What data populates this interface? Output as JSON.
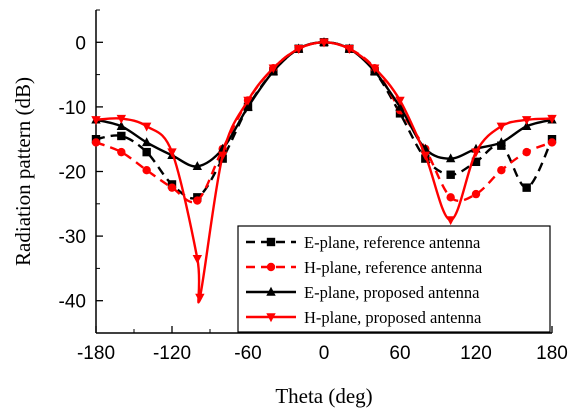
{
  "chart_data": {
    "type": "line",
    "title": "",
    "xlabel": "Theta (deg)",
    "ylabel": "Radiation pattern (dB)",
    "xlim": [
      -180,
      180
    ],
    "ylim": [
      -45,
      5
    ],
    "xticks": [
      -180,
      -120,
      -60,
      0,
      60,
      120,
      180
    ],
    "yticks": [
      0,
      -10,
      -20,
      -30,
      -40
    ],
    "grid": false,
    "legend_position": "bottom-right",
    "series": [
      {
        "name": "E-plane, reference antenna",
        "color": "#000000",
        "dash": "dashed",
        "marker": "square",
        "x": [
          -180,
          -160,
          -140,
          -120,
          -100,
          -80,
          -60,
          -40,
          -20,
          0,
          20,
          40,
          60,
          80,
          100,
          120,
          140,
          160,
          180
        ],
        "y": [
          -15,
          -14.5,
          -17,
          -22,
          -24,
          -18,
          -10,
          -4.5,
          -1,
          0,
          -1,
          -4.5,
          -11,
          -18,
          -20.5,
          -18.5,
          -16,
          -22.5,
          -15
        ]
      },
      {
        "name": "H-plane, reference antenna",
        "color": "#ff0000",
        "dash": "dashed",
        "marker": "circle",
        "x": [
          -180,
          -160,
          -140,
          -120,
          -100,
          -80,
          -60,
          -40,
          -20,
          0,
          20,
          40,
          60,
          80,
          100,
          120,
          140,
          160,
          180
        ],
        "y": [
          -15.5,
          -17,
          -19.8,
          -22.5,
          -24.5,
          -16.5,
          -9,
          -4,
          -1,
          0,
          -1,
          -4,
          -10.5,
          -16.5,
          -24,
          -23.5,
          -19.8,
          -17,
          -15.5
        ]
      },
      {
        "name": "E-plane, proposed antenna",
        "color": "#000000",
        "dash": "solid",
        "marker": "triangle-up",
        "x": [
          -180,
          -160,
          -140,
          -120,
          -100,
          -80,
          -60,
          -40,
          -20,
          0,
          20,
          40,
          60,
          80,
          100,
          120,
          140,
          160,
          180
        ],
        "y": [
          -12,
          -13,
          -15.5,
          -17.5,
          -19.2,
          -16.5,
          -10,
          -4.5,
          -1,
          0,
          -1,
          -4.5,
          -10,
          -16.5,
          -18,
          -16.5,
          -15.5,
          -13,
          -12
        ]
      },
      {
        "name": "H-plane, proposed antenna",
        "color": "#ff0000",
        "dash": "solid",
        "marker": "triangle-down",
        "x": [
          -180,
          -160,
          -140,
          -120,
          -100,
          -98,
          -80,
          -60,
          -40,
          -20,
          0,
          20,
          40,
          60,
          80,
          100,
          120,
          140,
          160,
          180
        ],
        "y": [
          -12,
          -11.8,
          -13,
          -17,
          -33.5,
          -39.5,
          -17.5,
          -9,
          -4,
          -1,
          0,
          -1,
          -4,
          -9,
          -17.5,
          -27.5,
          -17,
          -13,
          -12,
          -11.8
        ]
      }
    ]
  }
}
